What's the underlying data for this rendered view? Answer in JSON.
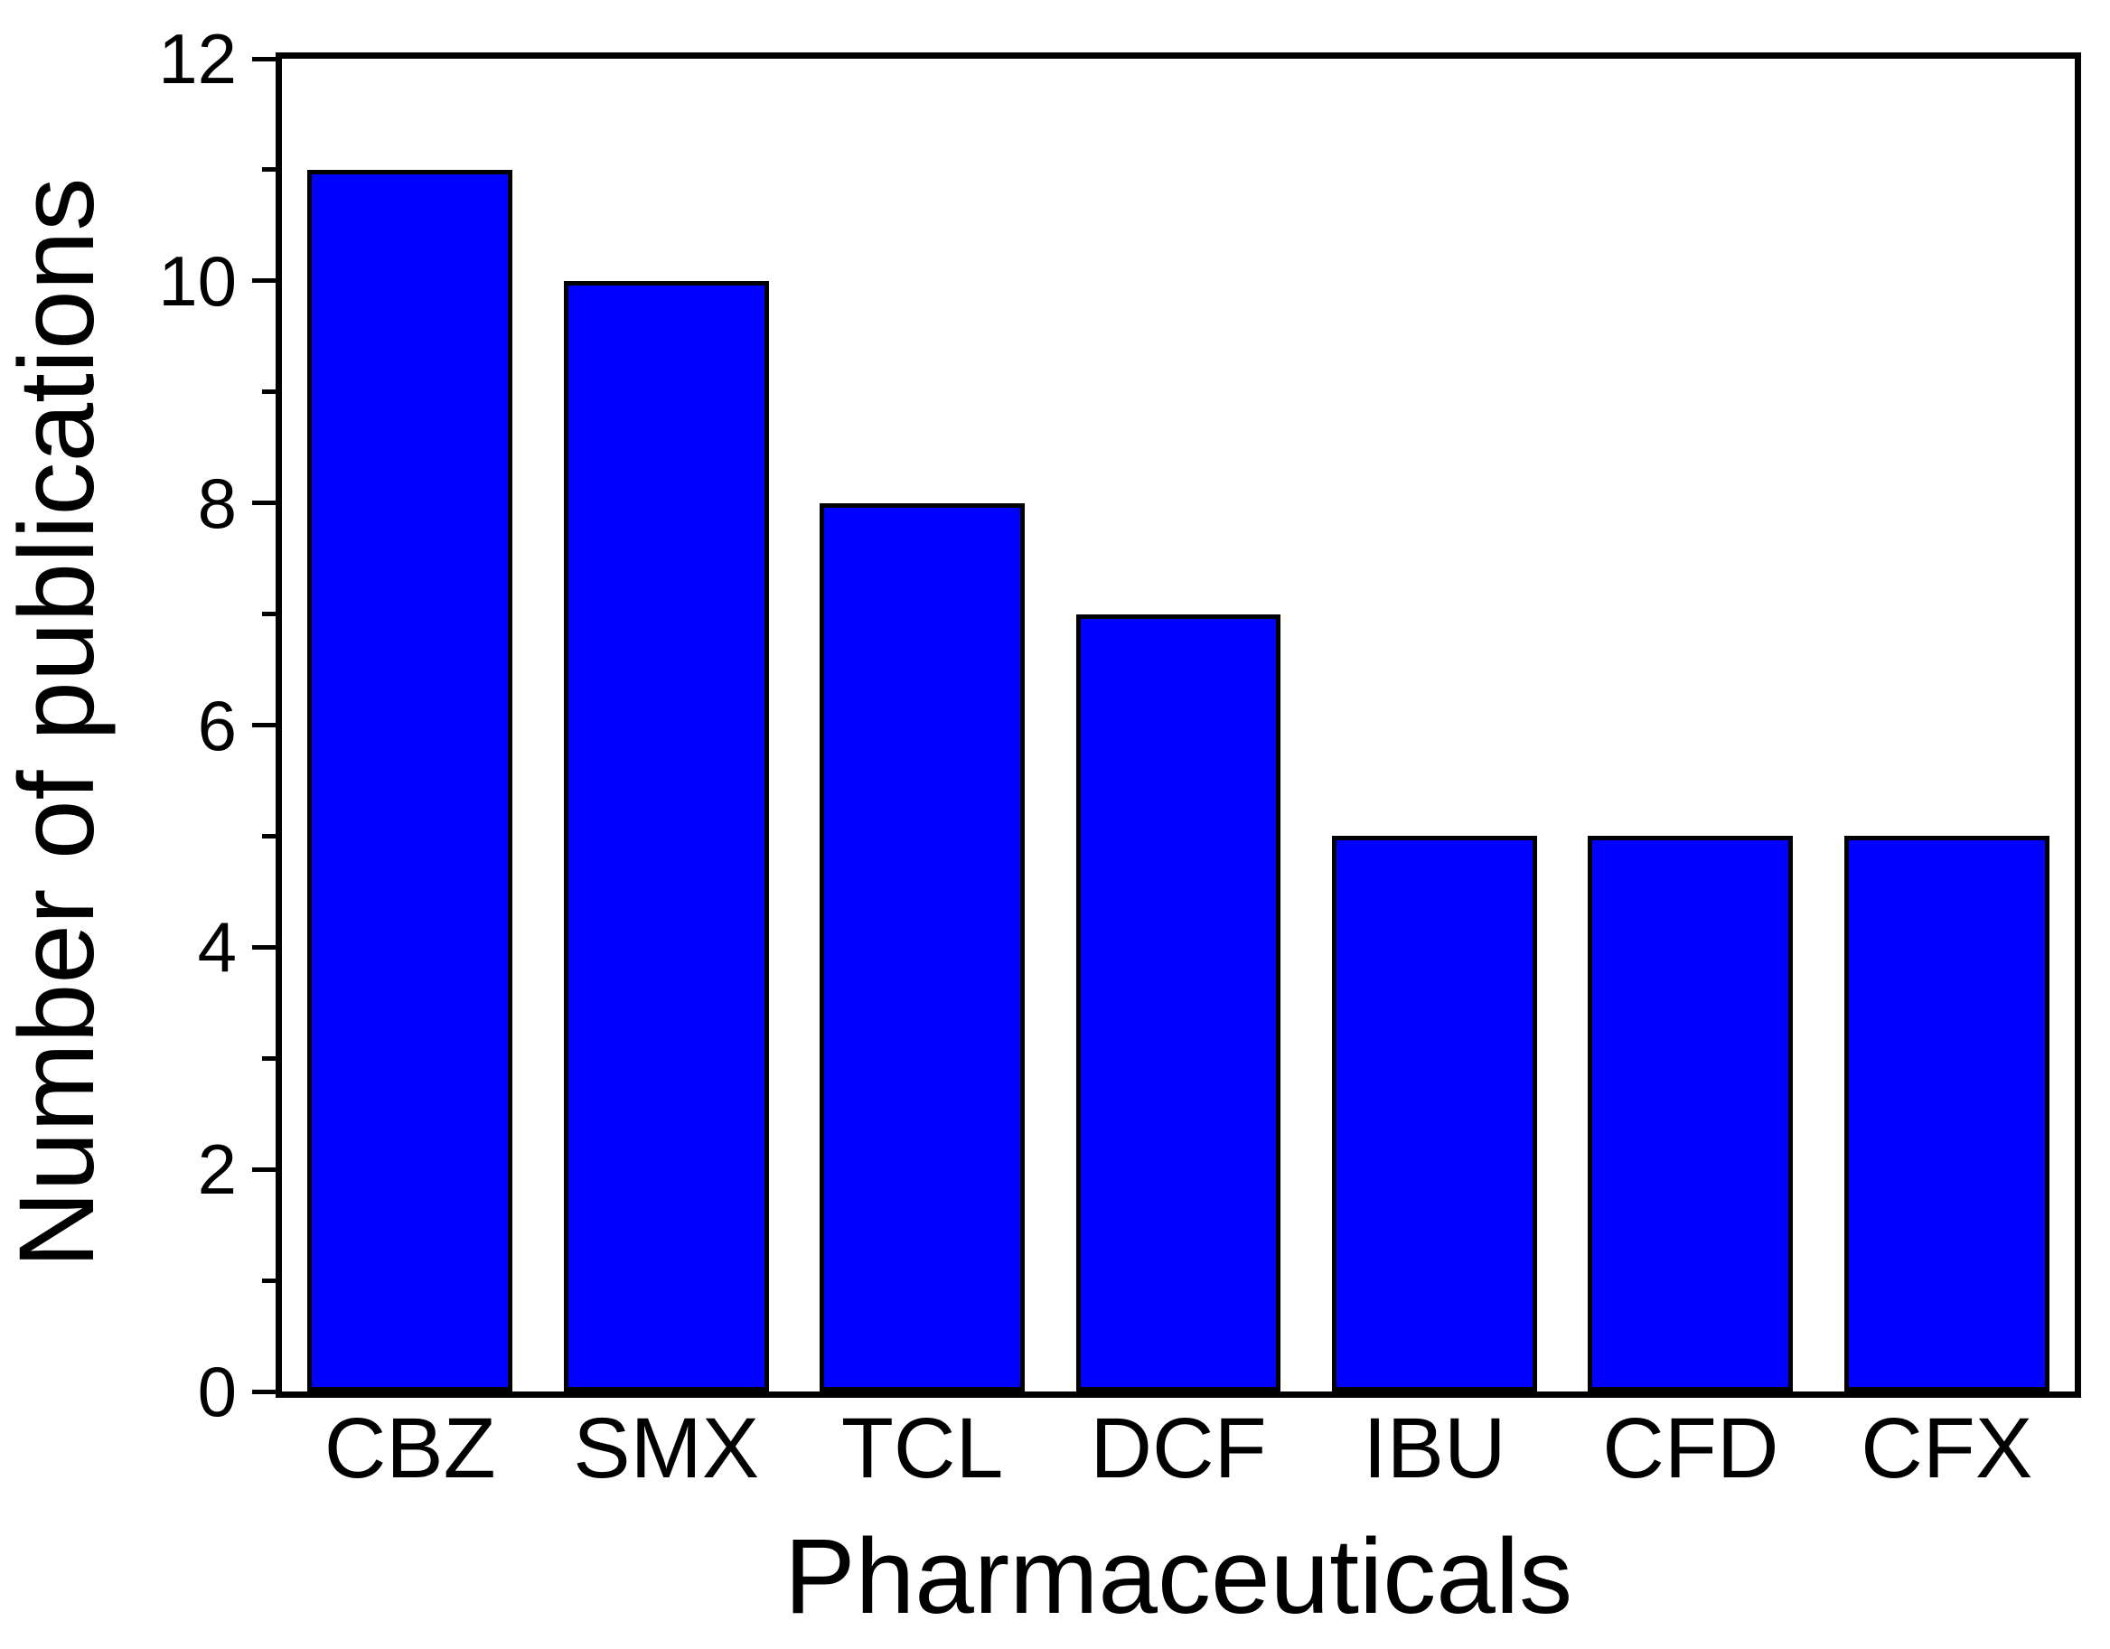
{
  "chart_data": {
    "type": "bar",
    "title": "",
    "categories": [
      "CBZ",
      "SMX",
      "TCL",
      "DCF",
      "IBU",
      "CFD",
      "CFX"
    ],
    "values": [
      11,
      10,
      8,
      7,
      5,
      5,
      5
    ],
    "xlabel": "Pharmaceuticals",
    "ylabel": "Number of publications",
    "ylim": [
      0,
      12
    ],
    "y_major_step": 2,
    "y_minor_step": 1,
    "y_tick_labels": [
      "0",
      "2",
      "4",
      "6",
      "8",
      "10",
      "12"
    ],
    "grid": false,
    "legend": null,
    "colors": {
      "bar_fill": "#0000FF",
      "bar_border": "#000000",
      "axis": "#000000",
      "text": "#000000",
      "background": "#FFFFFF"
    }
  }
}
